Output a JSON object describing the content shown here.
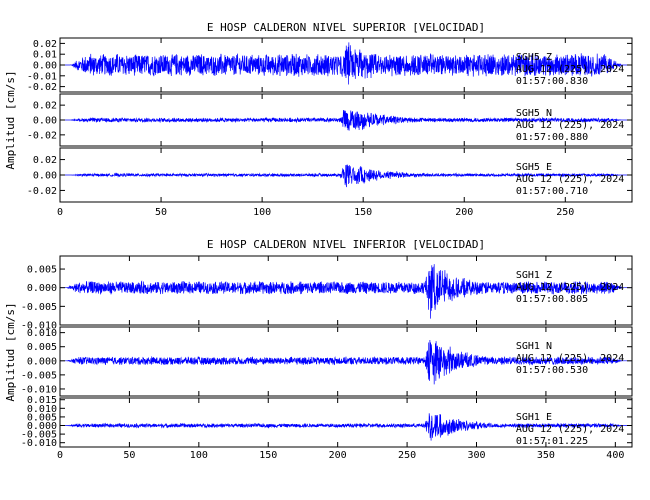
{
  "chart_data": [
    {
      "type": "line",
      "title": "E HOSP CALDERON NIVEL SUPERIOR [VELOCIDAD]",
      "ylabel": "Amplitud [cm/s]",
      "xlabel": "",
      "xlim": [
        0,
        283
      ],
      "xticks": [
        0,
        50,
        100,
        150,
        200,
        250
      ],
      "signal": {
        "start": 5,
        "end": 278,
        "event_onset": 138,
        "event_coda_end": 185
      },
      "color": "#0000ff",
      "panels": [
        {
          "station": "SGH5",
          "component": "Z",
          "date": "AUG 12 (225), 2024",
          "time": "01:57:00.830",
          "ylim": [
            -0.025,
            0.025
          ],
          "yticks": [
            -0.02,
            -0.01,
            0.0,
            0.01,
            0.02
          ],
          "ytick_labels": [
            "-0.02",
            "-0.01",
            "0.00",
            "0.01",
            "0.02"
          ],
          "noise_amp": 0.011,
          "peak_amp": 0.024
        },
        {
          "station": "SGH5",
          "component": "N",
          "date": "AUG 12 (225), 2024",
          "time": "01:57:00.880",
          "ylim": [
            -0.035,
            0.035
          ],
          "yticks": [
            -0.02,
            0.0,
            0.02
          ],
          "ytick_labels": [
            "-0.02",
            "0.00",
            "0.02"
          ],
          "noise_amp": 0.003,
          "peak_amp": 0.022
        },
        {
          "station": "SGH5",
          "component": "E",
          "date": "AUG 12 (225), 2024",
          "time": "01:57:00.710",
          "ylim": [
            -0.035,
            0.035
          ],
          "yticks": [
            -0.02,
            0.0,
            0.02
          ],
          "ytick_labels": [
            "-0.02",
            "0.00",
            "0.02"
          ],
          "noise_amp": 0.002,
          "peak_amp": 0.02
        }
      ]
    },
    {
      "type": "line",
      "title": "E HOSP CALDERON NIVEL INFERIOR [VELOCIDAD]",
      "ylabel": "Amplitud [cm/s]",
      "xlabel": "",
      "xlim": [
        0,
        412
      ],
      "xticks": [
        0,
        50,
        100,
        150,
        200,
        250,
        300,
        350,
        400
      ],
      "signal": {
        "start": 5,
        "end": 405,
        "event_onset": 262,
        "event_coda_end": 320
      },
      "color": "#0000ff",
      "panels": [
        {
          "station": "SGH1",
          "component": "Z",
          "date": "AUG 12 (225), 2024",
          "time": "01:57:00.805",
          "ylim": [
            -0.01,
            0.0085
          ],
          "yticks": [
            -0.01,
            -0.005,
            0.0,
            0.005
          ],
          "ytick_labels": [
            "-0.010",
            "-0.005",
            "0.000",
            "0.005"
          ],
          "noise_amp": 0.0018,
          "peak_amp": 0.0085
        },
        {
          "station": "SGH1",
          "component": "N",
          "date": "AUG 12 (225), 2024",
          "time": "01:57:00.530",
          "ylim": [
            -0.0125,
            0.012
          ],
          "yticks": [
            -0.01,
            -0.005,
            0.0,
            0.005,
            0.01
          ],
          "ytick_labels": [
            "-0.010",
            "-0.005",
            "0.000",
            "0.005",
            "0.010"
          ],
          "noise_amp": 0.0015,
          "peak_amp": 0.0105
        },
        {
          "station": "SGH1",
          "component": "E",
          "date": "AUG 12 (225), 2024",
          "time": "01:57:01.225",
          "ylim": [
            -0.0125,
            0.016
          ],
          "yticks": [
            -0.01,
            -0.005,
            0.0,
            0.005,
            0.01,
            0.015
          ],
          "ytick_labels": [
            "-0.010",
            "-0.005",
            "0.000",
            "0.005",
            "0.010",
            "0.015"
          ],
          "noise_amp": 0.0012,
          "peak_amp": 0.0112
        }
      ]
    }
  ]
}
